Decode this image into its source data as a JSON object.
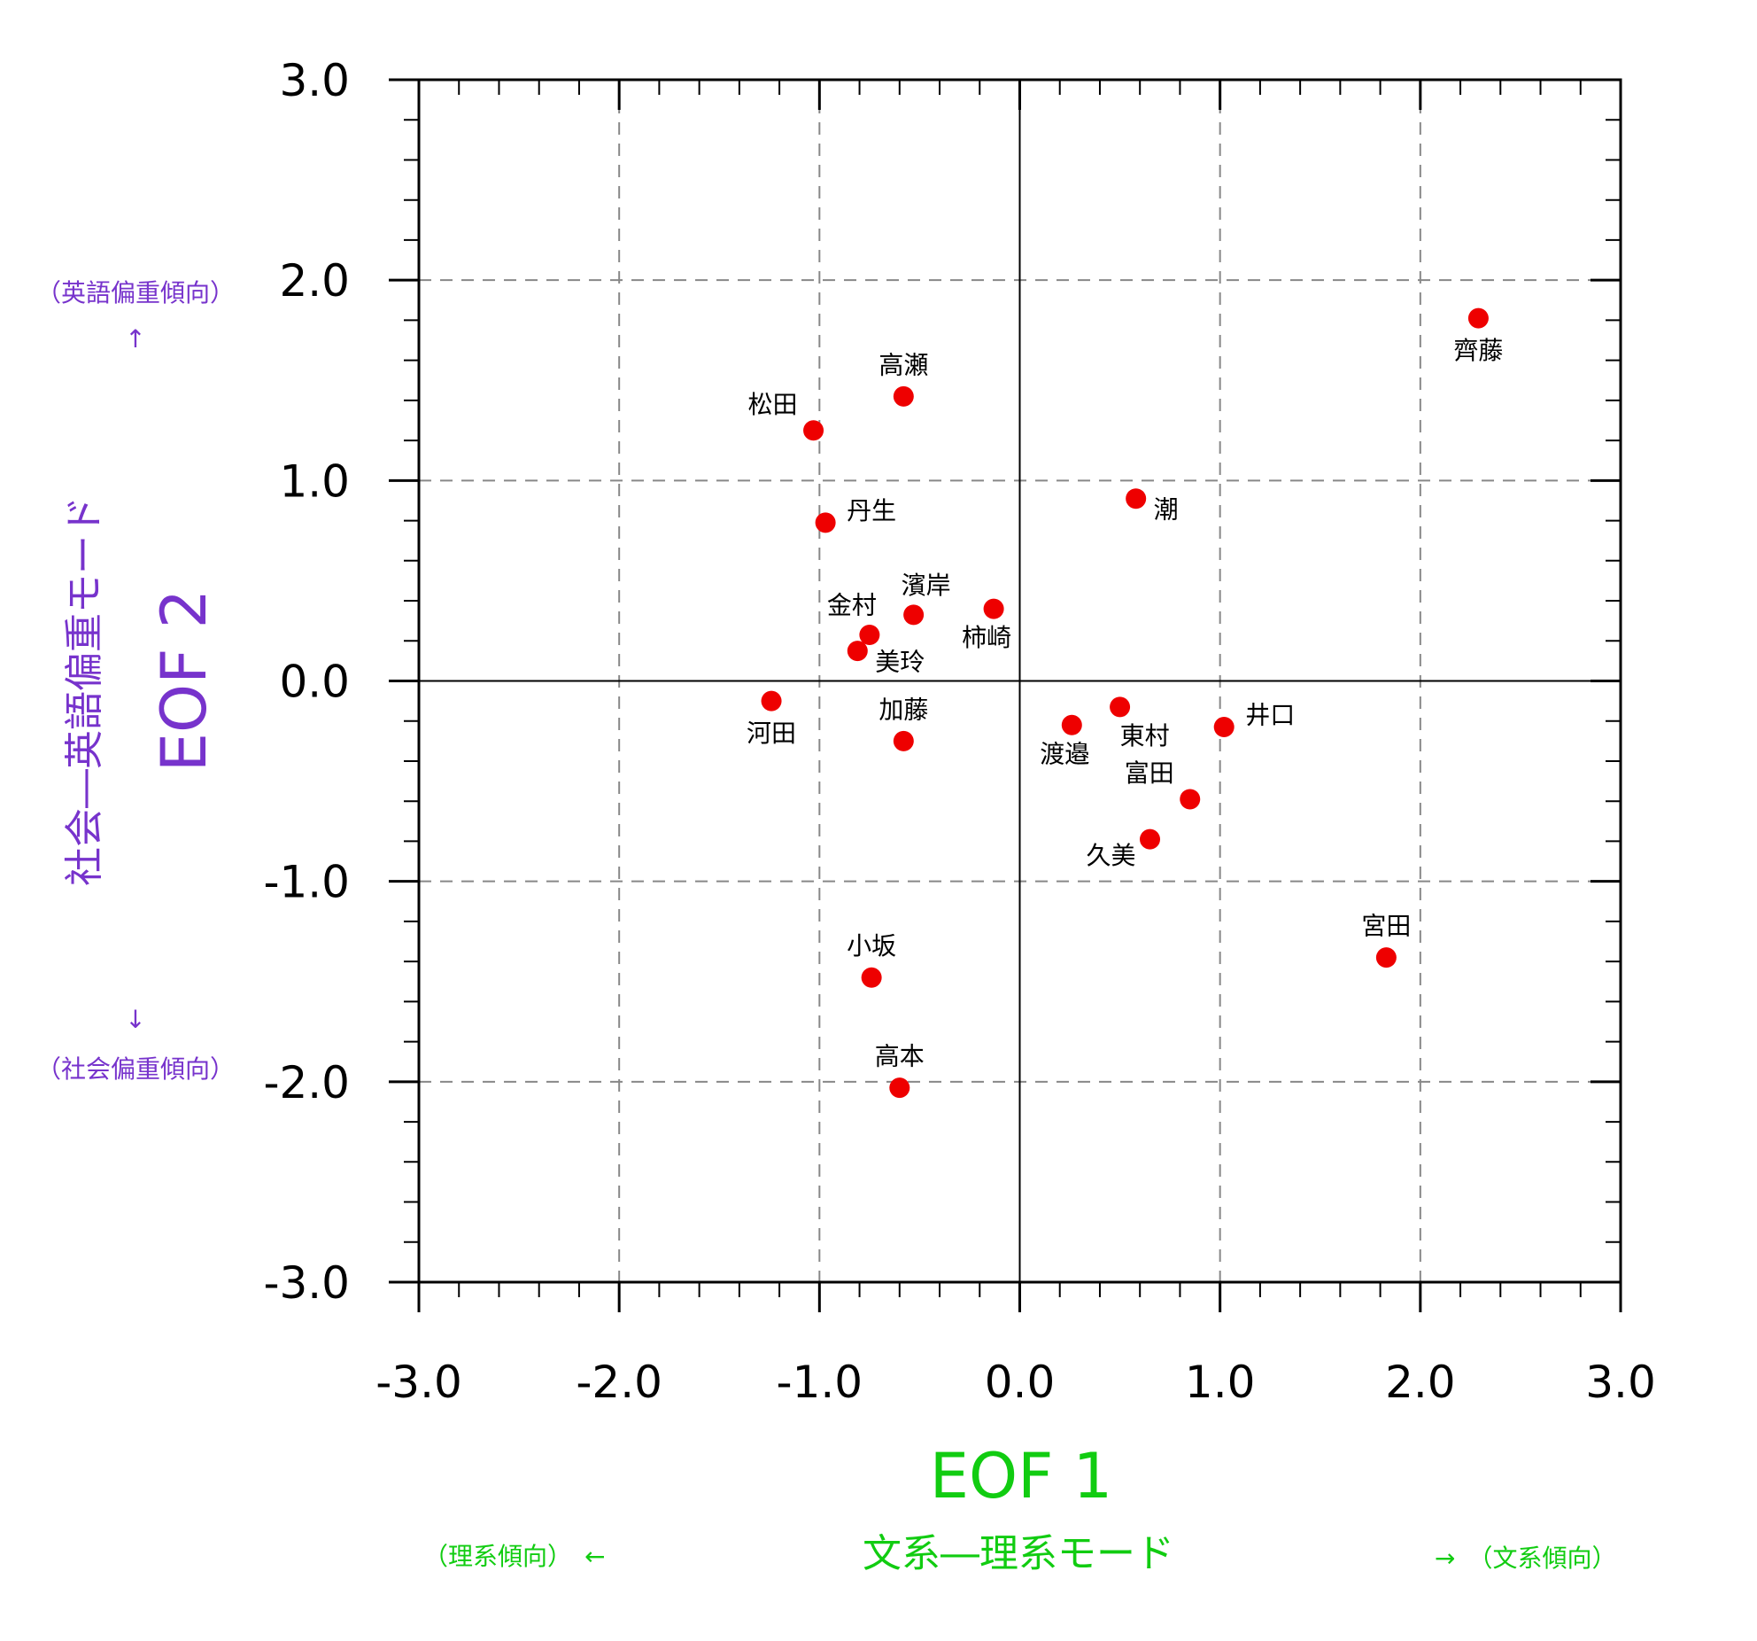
{
  "chart_data": {
    "type": "scatter",
    "title": "",
    "xlabel": "EOF 1",
    "ylabel": "EOF 2",
    "xmode_label": "文系―理系モード",
    "ymode_label": "社会―英語偏重モード",
    "x_neg_hint": "（理系傾向）　←",
    "x_pos_hint": "→　（文系傾向）",
    "y_pos_hint": "（英語偏重傾向）",
    "y_pos_arrow": "↑",
    "y_neg_arrow": "↓",
    "y_neg_hint": "（社会偏重傾向）",
    "xlim": [
      -3,
      3
    ],
    "ylim": [
      -3,
      3
    ],
    "ticks": [
      -3,
      -2,
      -1,
      0,
      1,
      2,
      3
    ],
    "tick_labels": [
      "-3.0",
      "-2.0",
      "-1.0",
      "0.0",
      "1.0",
      "2.0",
      "3.0"
    ],
    "grid": true,
    "colors": {
      "marker": "#ee0000",
      "x_label": "#11cc11",
      "y_label": "#7733cc",
      "grid": "#888888"
    },
    "points": [
      {
        "name": "齊藤",
        "x": 2.29,
        "y": 1.81,
        "pos": "below"
      },
      {
        "name": "高瀬",
        "x": -0.58,
        "y": 1.42,
        "pos": "above"
      },
      {
        "name": "松田",
        "x": -1.03,
        "y": 1.25,
        "pos": "upper-left"
      },
      {
        "name": "潮",
        "x": 0.58,
        "y": 0.91,
        "pos": "lower-right"
      },
      {
        "name": "丹生",
        "x": -0.97,
        "y": 0.79,
        "pos": "upper-right"
      },
      {
        "name": "濱岸",
        "x": -0.53,
        "y": 0.33,
        "pos": "above-right"
      },
      {
        "name": "柿崎",
        "x": -0.13,
        "y": 0.36,
        "pos": "below-left"
      },
      {
        "name": "金村",
        "x": -0.75,
        "y": 0.23,
        "pos": "above-left"
      },
      {
        "name": "美玲",
        "x": -0.81,
        "y": 0.15,
        "pos": "lower-right"
      },
      {
        "name": "河田",
        "x": -1.24,
        "y": -0.1,
        "pos": "below"
      },
      {
        "name": "加藤",
        "x": -0.58,
        "y": -0.3,
        "pos": "above"
      },
      {
        "name": "渡邉",
        "x": 0.26,
        "y": -0.22,
        "pos": "below-left"
      },
      {
        "name": "東村",
        "x": 0.5,
        "y": -0.13,
        "pos": "below-right"
      },
      {
        "name": "井口",
        "x": 1.02,
        "y": -0.23,
        "pos": "upper-right"
      },
      {
        "name": "富田",
        "x": 0.85,
        "y": -0.59,
        "pos": "upper-left"
      },
      {
        "name": "久美",
        "x": 0.65,
        "y": -0.79,
        "pos": "lower-left"
      },
      {
        "name": "宮田",
        "x": 1.83,
        "y": -1.38,
        "pos": "above"
      },
      {
        "name": "小坂",
        "x": -0.74,
        "y": -1.48,
        "pos": "above"
      },
      {
        "name": "高本",
        "x": -0.6,
        "y": -2.03,
        "pos": "above"
      }
    ]
  }
}
